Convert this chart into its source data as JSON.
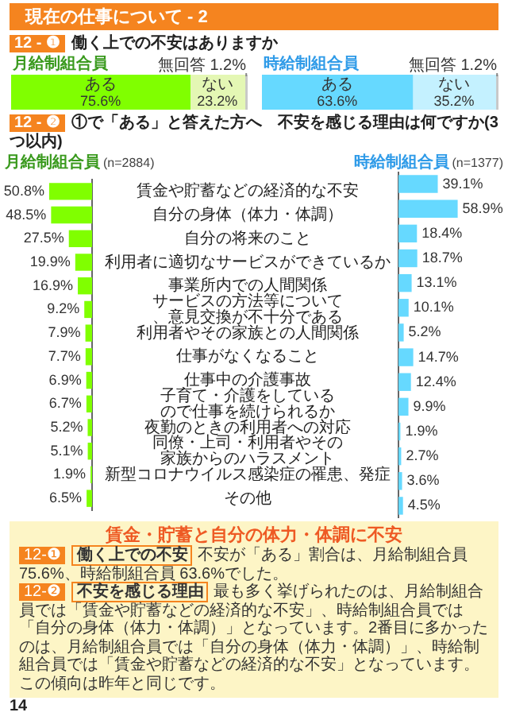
{
  "chart_data": [
    {
      "type": "bar",
      "orientation": "horizontal",
      "stacked": true,
      "title": "月給制組合員",
      "annotations": [
        "現在の仕事について - 2",
        "12 - ❶",
        "働く上での不安はありますか"
      ],
      "categories": [
        null
      ],
      "xlim": [
        0,
        100
      ],
      "tick_labels": false,
      "series": [
        {
          "name": "ある",
          "color": "#80ff00",
          "values": [
            75.6
          ],
          "value_labels": [
            "75.6%"
          ]
        },
        {
          "name": "ない",
          "color": "#e4f7b4",
          "values": [
            23.2
          ],
          "value_labels": [
            "23.2%"
          ]
        },
        {
          "name": "無回答",
          "color": "#c8c8c8",
          "values": [
            1.2
          ],
          "value_labels": [
            "1.2%"
          ]
        }
      ]
    },
    {
      "type": "bar",
      "orientation": "horizontal",
      "stacked": true,
      "title": "時給制組合員",
      "categories": [
        null
      ],
      "xlim": [
        0,
        100
      ],
      "tick_labels": false,
      "series": [
        {
          "name": "ある",
          "color": "#66d9ff",
          "values": [
            63.6
          ],
          "value_labels": [
            "63.6%"
          ]
        },
        {
          "name": "ない",
          "color": "#c4f1ff",
          "values": [
            35.2
          ],
          "value_labels": [
            "35.2%"
          ]
        },
        {
          "name": "無回答",
          "color": "#c8c8c8",
          "values": [
            1.2
          ],
          "value_labels": [
            "1.2%"
          ]
        }
      ]
    },
    {
      "type": "bar",
      "orientation": "horizontal",
      "title": "月給制組合員",
      "subtitle": "(n=2884)",
      "annotations": [
        "12 - ❷",
        "①で「ある」と答えた方へ　不安を感じる理由は何ですか(3つ以内)"
      ],
      "categories": [
        "賃金や貯蓄などの経済的な不安",
        "自分の身体（体力・体調）",
        "自分の将来のこと",
        "利用者に適切なサービスができているか",
        "事業所内での人間関係",
        "サービスの方法等について、意見交換が不十分である",
        "利用者やその家族との人間関係",
        "仕事がなくなること",
        "仕事中の介護事故",
        "子育て・介護をしているので仕事を続けられるか",
        "夜勤のときの利用者への対応",
        "同僚・上司・利用者やその家族からのハラスメント",
        "新型コロナウイルス感染症の罹患、発症",
        "その他"
      ],
      "values": [
        50.8,
        48.5,
        27.5,
        19.9,
        16.9,
        9.2,
        7.9,
        7.7,
        6.9,
        6.7,
        5.2,
        5.1,
        1.9,
        6.5
      ],
      "value_labels": [
        "50.8%",
        "48.5%",
        "27.5%",
        "19.9%",
        "16.9%",
        "9.2%",
        "7.9%",
        "7.7%",
        "6.9%",
        "6.7%",
        "5.2%",
        "5.1%",
        "1.9%",
        "6.5%"
      ],
      "color": "#80ff00",
      "tick_labels": "y"
    },
    {
      "type": "bar",
      "orientation": "horizontal",
      "title": "時給制組合員",
      "subtitle": "(n=1377)",
      "categories": [
        "賃金や貯蓄などの経済的な不安",
        "自分の身体（体力・体調）",
        "自分の将来のこと",
        "利用者に適切なサービスができているか",
        "事業所内での人間関係",
        "サービスの方法等について、意見交換が不十分である",
        "利用者やその家族との人間関係",
        "仕事がなくなること",
        "仕事中の介護事故",
        "子育て・介護をしているので仕事を続けられるか",
        "夜勤のときの利用者への対応",
        "同僚・上司・利用者やその家族からのハラスメント",
        "新型コロナウイルス感染症の罹患、発症",
        "その他"
      ],
      "values": [
        39.1,
        58.9,
        18.4,
        18.7,
        13.1,
        10.1,
        5.2,
        14.7,
        12.4,
        9.9,
        1.9,
        2.7,
        3.6,
        4.5
      ],
      "value_labels": [
        "39.1%",
        "58.9%",
        "18.4%",
        "18.7%",
        "13.1%",
        "10.1%",
        "5.2%",
        "14.7%",
        "12.4%",
        "9.9%",
        "1.9%",
        "2.7%",
        "3.6%",
        "4.5%"
      ],
      "color": "#66d9ff",
      "tick_labels": false
    },
    {
      "type": "other",
      "title": "賃金・貯蓄と自分の体力・体調に不安",
      "annotations": [
        "12-❶",
        "働く上での不安",
        "不安が「ある」割合は、月給制組合員 75.6%、時給制組合員 63.6%でした。",
        "12-❷",
        "不安を感じる理由",
        "最も多く挙げられたのは、月給制組合員では「賃金や貯蓄などの経済的な不安」、時給制組合員では「自分の身体（体力・体調）」となっています。2番目に多かったのは、月給制組合員では「自分の身体（体力・体調）」、時給制組合員では「賃金や貯蓄などの経済的な不安」となっています。この傾向は昨年と同じです。",
        "14"
      ]
    }
  ]
}
